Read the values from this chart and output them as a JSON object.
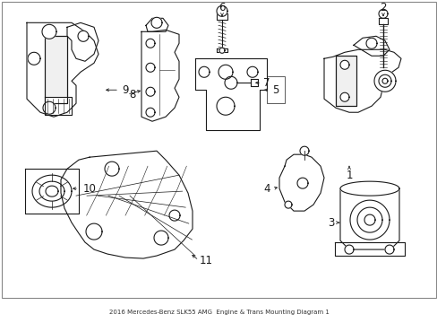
{
  "title": "2016 Mercedes-Benz SLK55 AMG\nEngine & Trans Mounting Diagram 1",
  "background_color": "#ffffff",
  "line_color": "#1a1a1a",
  "fig_width": 4.89,
  "fig_height": 3.6,
  "dpi": 100,
  "border_color": "#cccccc",
  "label_fontsize": 8.5
}
